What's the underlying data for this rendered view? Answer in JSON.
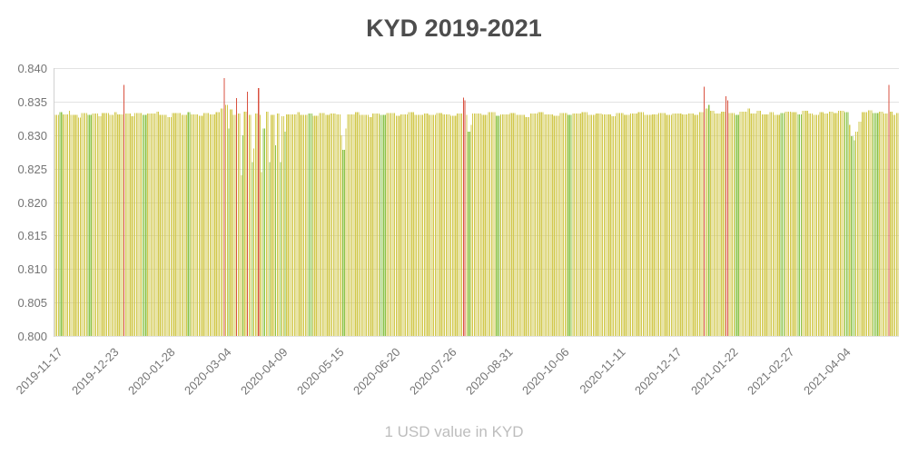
{
  "title": "KYD 2019-2021",
  "footer": "1 USD value in KYD",
  "chart_data": {
    "type": "bar",
    "title": "KYD 2019-2021",
    "xlabel": "",
    "ylabel": "",
    "note": "1 USD value in KYD",
    "ylim": [
      0.8,
      0.84
    ],
    "y_ticks": [
      "0.840",
      "0.835",
      "0.830",
      "0.825",
      "0.820",
      "0.815",
      "0.810",
      "0.805",
      "0.800"
    ],
    "x_ticks": [
      {
        "label": "2019-11-17",
        "day": 0
      },
      {
        "label": "2019-12-23",
        "day": 36
      },
      {
        "label": "2020-01-28",
        "day": 72
      },
      {
        "label": "2020-03-04",
        "day": 108
      },
      {
        "label": "2020-04-09",
        "day": 144
      },
      {
        "label": "2020-05-15",
        "day": 180
      },
      {
        "label": "2020-06-20",
        "day": 216
      },
      {
        "label": "2020-07-26",
        "day": 252
      },
      {
        "label": "2020-08-31",
        "day": 288
      },
      {
        "label": "2020-10-06",
        "day": 324
      },
      {
        "label": "2020-11-11",
        "day": 360
      },
      {
        "label": "2020-12-17",
        "day": 396
      },
      {
        "label": "2021-01-22",
        "day": 432
      },
      {
        "label": "2021-02-27",
        "day": 468
      },
      {
        "label": "2021-04-04",
        "day": 504
      }
    ],
    "total_days": 540,
    "grid": true,
    "legend": "none",
    "colors": {
      "y": "#d2c84d",
      "g": "#8bc34a",
      "r": "#d95140"
    },
    "palette": {
      "grid": "#e2e2e2",
      "axis_text": "#757575",
      "title_text": "#4d4d4d",
      "footer_text": "#bdbdbd",
      "background": "#ffffff"
    },
    "runs": [
      [
        3,
        0.833,
        "y"
      ],
      [
        2,
        0.8334,
        "g"
      ],
      [
        4,
        0.8331,
        "y"
      ],
      [
        1,
        0.8336,
        "y"
      ],
      [
        5,
        0.833,
        "y"
      ],
      [
        2,
        0.8326,
        "y"
      ],
      [
        4,
        0.8333,
        "y"
      ],
      [
        3,
        0.833,
        "g"
      ],
      [
        4,
        0.8332,
        "y"
      ],
      [
        2,
        0.8328,
        "y"
      ],
      [
        5,
        0.8333,
        "y"
      ],
      [
        3,
        0.833,
        "y"
      ],
      [
        2,
        0.8334,
        "y"
      ],
      [
        4,
        0.8331,
        "y"
      ],
      [
        1,
        0.8375,
        "r"
      ],
      [
        4,
        0.8332,
        "y"
      ],
      [
        2,
        0.8328,
        "y"
      ],
      [
        5,
        0.8333,
        "y"
      ],
      [
        3,
        0.833,
        "g"
      ],
      [
        6,
        0.8332,
        "y"
      ],
      [
        2,
        0.8335,
        "y"
      ],
      [
        5,
        0.833,
        "y"
      ],
      [
        3,
        0.8327,
        "y"
      ],
      [
        6,
        0.8333,
        "y"
      ],
      [
        4,
        0.833,
        "y"
      ],
      [
        2,
        0.8334,
        "g"
      ],
      [
        5,
        0.8331,
        "y"
      ],
      [
        3,
        0.8329,
        "y"
      ],
      [
        4,
        0.8333,
        "y"
      ],
      [
        4,
        0.8331,
        "y"
      ],
      [
        3,
        0.8334,
        "y"
      ],
      [
        2,
        0.834,
        "y"
      ],
      [
        1,
        0.8385,
        "r"
      ],
      [
        2,
        0.8345,
        "y"
      ],
      [
        1,
        0.831,
        "g"
      ],
      [
        2,
        0.8338,
        "y"
      ],
      [
        2,
        0.833,
        "y"
      ],
      [
        1,
        0.8355,
        "r"
      ],
      [
        2,
        0.8332,
        "y"
      ],
      [
        1,
        0.824,
        "y"
      ],
      [
        1,
        0.83,
        "g"
      ],
      [
        2,
        0.8335,
        "y"
      ],
      [
        1,
        0.8365,
        "r"
      ],
      [
        2,
        0.833,
        "y"
      ],
      [
        1,
        0.826,
        "g"
      ],
      [
        1,
        0.828,
        "y"
      ],
      [
        2,
        0.8332,
        "y"
      ],
      [
        1,
        0.837,
        "r"
      ],
      [
        1,
        0.833,
        "y"
      ],
      [
        1,
        0.8245,
        "y"
      ],
      [
        2,
        0.831,
        "g"
      ],
      [
        2,
        0.8335,
        "y"
      ],
      [
        1,
        0.826,
        "g"
      ],
      [
        3,
        0.833,
        "y"
      ],
      [
        1,
        0.8285,
        "g"
      ],
      [
        2,
        0.8332,
        "y"
      ],
      [
        1,
        0.826,
        "g"
      ],
      [
        2,
        0.8328,
        "y"
      ],
      [
        1,
        0.8305,
        "g"
      ],
      [
        3,
        0.8331,
        "y"
      ],
      [
        4,
        0.8331,
        "y"
      ],
      [
        2,
        0.8334,
        "y"
      ],
      [
        5,
        0.833,
        "y"
      ],
      [
        3,
        0.8332,
        "g"
      ],
      [
        4,
        0.8329,
        "y"
      ],
      [
        4,
        0.8333,
        "y"
      ],
      [
        3,
        0.833,
        "y"
      ],
      [
        4,
        0.8332,
        "y"
      ],
      [
        3,
        0.8331,
        "y"
      ],
      [
        1,
        0.83,
        "y"
      ],
      [
        2,
        0.8278,
        "g"
      ],
      [
        1,
        0.831,
        "y"
      ],
      [
        5,
        0.8331,
        "y"
      ],
      [
        3,
        0.8334,
        "y"
      ],
      [
        6,
        0.833,
        "y"
      ],
      [
        2,
        0.8327,
        "y"
      ],
      [
        5,
        0.8332,
        "y"
      ],
      [
        4,
        0.833,
        "g"
      ],
      [
        6,
        0.8333,
        "y"
      ],
      [
        3,
        0.8329,
        "y"
      ],
      [
        5,
        0.8331,
        "y"
      ],
      [
        4,
        0.8334,
        "y"
      ],
      [
        6,
        0.833,
        "y"
      ],
      [
        3,
        0.8332,
        "y"
      ],
      [
        5,
        0.833,
        "y"
      ],
      [
        4,
        0.8333,
        "y"
      ],
      [
        5,
        0.8331,
        "y"
      ],
      [
        4,
        0.8329,
        "y"
      ],
      [
        4,
        0.8332,
        "y"
      ],
      [
        1,
        0.8356,
        "r"
      ],
      [
        1,
        0.8352,
        "r"
      ],
      [
        1,
        0.833,
        "y"
      ],
      [
        2,
        0.8305,
        "g"
      ],
      [
        1,
        0.8315,
        "y"
      ],
      [
        6,
        0.8332,
        "y"
      ],
      [
        4,
        0.833,
        "y"
      ],
      [
        5,
        0.8334,
        "y"
      ],
      [
        3,
        0.8329,
        "g"
      ],
      [
        6,
        0.8331,
        "y"
      ],
      [
        4,
        0.8333,
        "y"
      ],
      [
        6,
        0.833,
        "y"
      ],
      [
        3,
        0.8327,
        "y"
      ],
      [
        5,
        0.8332,
        "y"
      ],
      [
        4,
        0.8334,
        "y"
      ],
      [
        6,
        0.8331,
        "y"
      ],
      [
        4,
        0.8329,
        "y"
      ],
      [
        5,
        0.8333,
        "y"
      ],
      [
        3,
        0.833,
        "g"
      ],
      [
        6,
        0.8332,
        "y"
      ],
      [
        4,
        0.8334,
        "y"
      ],
      [
        5,
        0.833,
        "y"
      ],
      [
        4,
        0.8332,
        "y"
      ],
      [
        6,
        0.8331,
        "y"
      ],
      [
        3,
        0.8328,
        "y"
      ],
      [
        5,
        0.8333,
        "y"
      ],
      [
        4,
        0.833,
        "y"
      ],
      [
        5,
        0.8332,
        "y"
      ],
      [
        4,
        0.8334,
        "y"
      ],
      [
        5,
        0.833,
        "y"
      ],
      [
        4,
        0.8331,
        "y"
      ],
      [
        5,
        0.8333,
        "y"
      ],
      [
        4,
        0.833,
        "y"
      ],
      [
        6,
        0.8332,
        "y"
      ],
      [
        4,
        0.8331,
        "y"
      ],
      [
        4,
        0.8332,
        "y"
      ],
      [
        3,
        0.833,
        "y"
      ],
      [
        3,
        0.8334,
        "y"
      ],
      [
        1,
        0.8372,
        "r"
      ],
      [
        2,
        0.834,
        "y"
      ],
      [
        1,
        0.8345,
        "g"
      ],
      [
        3,
        0.8336,
        "y"
      ],
      [
        4,
        0.8332,
        "y"
      ],
      [
        3,
        0.8335,
        "y"
      ],
      [
        1,
        0.8358,
        "r"
      ],
      [
        1,
        0.8352,
        "r"
      ],
      [
        4,
        0.8333,
        "y"
      ],
      [
        3,
        0.833,
        "g"
      ],
      [
        5,
        0.8335,
        "y"
      ],
      [
        2,
        0.834,
        "y"
      ],
      [
        4,
        0.8332,
        "y"
      ],
      [
        3,
        0.8336,
        "y"
      ],
      [
        5,
        0.8331,
        "y"
      ],
      [
        3,
        0.8334,
        "y"
      ],
      [
        4,
        0.833,
        "y"
      ],
      [
        3,
        0.8333,
        "g"
      ],
      [
        4,
        0.8335,
        "y"
      ],
      [
        4,
        0.8334,
        "y"
      ],
      [
        3,
        0.8331,
        "g"
      ],
      [
        4,
        0.8336,
        "y"
      ],
      [
        3,
        0.8332,
        "y"
      ],
      [
        4,
        0.833,
        "y"
      ],
      [
        3,
        0.8334,
        "y"
      ],
      [
        3,
        0.8332,
        "y"
      ],
      [
        3,
        0.8335,
        "y"
      ],
      [
        3,
        0.8333,
        "y"
      ],
      [
        4,
        0.8336,
        "y"
      ],
      [
        3,
        0.8334,
        "g"
      ],
      [
        1,
        0.8315,
        "y"
      ],
      [
        2,
        0.8298,
        "g"
      ],
      [
        1,
        0.8292,
        "g"
      ],
      [
        2,
        0.8305,
        "y"
      ],
      [
        2,
        0.832,
        "y"
      ],
      [
        4,
        0.8334,
        "y"
      ],
      [
        3,
        0.8337,
        "y"
      ],
      [
        4,
        0.8333,
        "g"
      ],
      [
        3,
        0.8335,
        "y"
      ],
      [
        3,
        0.8332,
        "y"
      ],
      [
        1,
        0.8375,
        "r"
      ],
      [
        2,
        0.8335,
        "y"
      ],
      [
        2,
        0.833,
        "y"
      ],
      [
        2,
        0.8333,
        "y"
      ]
    ]
  }
}
